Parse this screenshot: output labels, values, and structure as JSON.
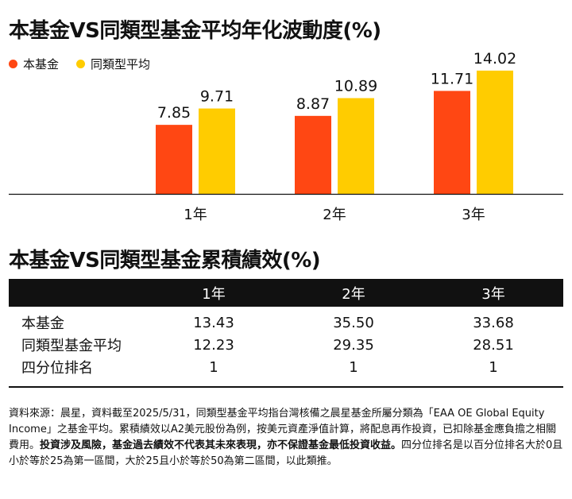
{
  "chart": {
    "title": "本基金VS同類型基金平均年化波動度(%)",
    "chart_data": {
      "type": "bar",
      "categories": [
        "1年",
        "2年",
        "3年"
      ],
      "series": [
        {
          "name": "本基金",
          "values": [
            7.85,
            8.87,
            11.71
          ],
          "color": "#FF4713"
        },
        {
          "name": "同類型平均",
          "values": [
            9.71,
            10.89,
            14.02
          ],
          "color": "#FFCC00"
        }
      ],
      "ylim": [
        0,
        15
      ],
      "grid": false,
      "legend": "top-left"
    }
  },
  "table": {
    "title": "本基金VS同類型基金累積績效(%)",
    "columns": [
      "",
      "1年",
      "2年",
      "3年"
    ],
    "rows": [
      {
        "label": "本基金",
        "values": [
          "13.43",
          "35.50",
          "33.68"
        ]
      },
      {
        "label": "同類型基金平均",
        "values": [
          "12.23",
          "29.35",
          "28.51"
        ]
      },
      {
        "label": "四分位排名",
        "values": [
          "1",
          "1",
          "1"
        ]
      }
    ]
  },
  "footnote": {
    "part1": "資料來源：晨星，資料截至2025/5/31，同類型基金平均指台灣核備之晨星基金所屬分類為「EAA OE Global Equity Income」之基金平均。累積績效以A2美元股份為例，按美元資產淨值計算，將配息再作投資，已扣除基金應負擔之相關費用。",
    "bold": "投資涉及風險，基金過去績效不代表其未來表現，亦不保證基金最低投資收益。",
    "part2": "四分位排名是以百分位排名大於0且小於等於25為第一區間，大於25且小於等於50為第二區間，以此類推。"
  }
}
